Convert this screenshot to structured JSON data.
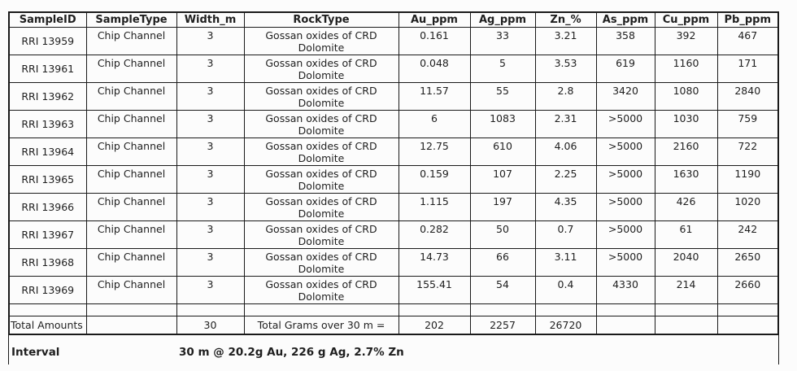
{
  "colors": {
    "background": "#fcfcfc",
    "border": "#1a1a1a",
    "text": "#1f1f1f"
  },
  "table": {
    "columns": [
      {
        "key": "sample_id",
        "label": "SampleID"
      },
      {
        "key": "sample_type",
        "label": "SampleType"
      },
      {
        "key": "width_m",
        "label": "Width_m"
      },
      {
        "key": "rock_type",
        "label": "RockType"
      },
      {
        "key": "au_ppm",
        "label": "Au_ppm"
      },
      {
        "key": "ag_ppm",
        "label": "Ag_ppm"
      },
      {
        "key": "zn_pct",
        "label": "Zn_%"
      },
      {
        "key": "as_ppm",
        "label": "As_ppm"
      },
      {
        "key": "cu_ppm",
        "label": "Cu_ppm"
      },
      {
        "key": "pb_ppm",
        "label": "Pb_ppm"
      }
    ],
    "rows": [
      {
        "sample_id": "RRI 13959",
        "sample_type": "Chip Channel",
        "width_m": "3",
        "rock_type": "Gossan oxides of CRD Dolomite",
        "au_ppm": "0.161",
        "ag_ppm": "33",
        "zn_pct": "3.21",
        "as_ppm": "358",
        "cu_ppm": "392",
        "pb_ppm": "467"
      },
      {
        "sample_id": "RRI 13961",
        "sample_type": "Chip Channel",
        "width_m": "3",
        "rock_type": "Gossan oxides of CRD Dolomite",
        "au_ppm": "0.048",
        "ag_ppm": "5",
        "zn_pct": "3.53",
        "as_ppm": "619",
        "cu_ppm": "1160",
        "pb_ppm": "171"
      },
      {
        "sample_id": "RRI 13962",
        "sample_type": "Chip Channel",
        "width_m": "3",
        "rock_type": "Gossan oxides of CRD Dolomite",
        "au_ppm": "11.57",
        "ag_ppm": "55",
        "zn_pct": "2.8",
        "as_ppm": "3420",
        "cu_ppm": "1080",
        "pb_ppm": "2840"
      },
      {
        "sample_id": "RRI 13963",
        "sample_type": "Chip Channel",
        "width_m": "3",
        "rock_type": "Gossan oxides of CRD Dolomite",
        "au_ppm": "6",
        "ag_ppm": "1083",
        "zn_pct": "2.31",
        "as_ppm": ">5000",
        "cu_ppm": "1030",
        "pb_ppm": "759"
      },
      {
        "sample_id": "RRI 13964",
        "sample_type": "Chip Channel",
        "width_m": "3",
        "rock_type": "Gossan oxides of CRD Dolomite",
        "au_ppm": "12.75",
        "ag_ppm": "610",
        "zn_pct": "4.06",
        "as_ppm": ">5000",
        "cu_ppm": "2160",
        "pb_ppm": "722"
      },
      {
        "sample_id": "RRI 13965",
        "sample_type": "Chip Channel",
        "width_m": "3",
        "rock_type": "Gossan oxides of CRD Dolomite",
        "au_ppm": "0.159",
        "ag_ppm": "107",
        "zn_pct": "2.25",
        "as_ppm": ">5000",
        "cu_ppm": "1630",
        "pb_ppm": "1190"
      },
      {
        "sample_id": "RRI 13966",
        "sample_type": "Chip Channel",
        "width_m": "3",
        "rock_type": "Gossan oxides of CRD Dolomite",
        "au_ppm": "1.115",
        "ag_ppm": "197",
        "zn_pct": "4.35",
        "as_ppm": ">5000",
        "cu_ppm": "426",
        "pb_ppm": "1020"
      },
      {
        "sample_id": "RRI 13967",
        "sample_type": "Chip Channel",
        "width_m": "3",
        "rock_type": "Gossan oxides of CRD Dolomite",
        "au_ppm": "0.282",
        "ag_ppm": "50",
        "zn_pct": "0.7",
        "as_ppm": ">5000",
        "cu_ppm": "61",
        "pb_ppm": "242"
      },
      {
        "sample_id": "RRI 13968",
        "sample_type": "Chip Channel",
        "width_m": "3",
        "rock_type": "Gossan oxides of CRD Dolomite",
        "au_ppm": "14.73",
        "ag_ppm": "66",
        "zn_pct": "3.11",
        "as_ppm": ">5000",
        "cu_ppm": "2040",
        "pb_ppm": "2650"
      },
      {
        "sample_id": "RRI 13969",
        "sample_type": "Chip Channel",
        "width_m": "3",
        "rock_type": "Gossan oxides of CRD Dolomite",
        "au_ppm": "155.41",
        "ag_ppm": "54",
        "zn_pct": "0.4",
        "as_ppm": "4330",
        "cu_ppm": "214",
        "pb_ppm": "2660"
      }
    ],
    "total_row": {
      "sample_id": "Total Amounts",
      "sample_type": "",
      "width_m": "30",
      "rock_type": "Total Grams over 30 m =",
      "au_ppm": "202",
      "ag_ppm": "2257",
      "zn_pct": "26720",
      "as_ppm": "",
      "cu_ppm": "",
      "pb_ppm": ""
    }
  },
  "footer": {
    "interval_label": "Interval",
    "interval_value": "30 m @ 20.2g Au, 226 g Ag, 2.7% Zn"
  },
  "chart_data": {
    "type": "table",
    "columns": [
      "SampleID",
      "SampleType",
      "Width_m",
      "RockType",
      "Au_ppm",
      "Ag_ppm",
      "Zn_%",
      "As_ppm",
      "Cu_ppm",
      "Pb_ppm"
    ],
    "rows": [
      [
        "RRI 13959",
        "Chip Channel",
        "3",
        "Gossan oxides of CRD Dolomite",
        "0.161",
        "33",
        "3.21",
        "358",
        "392",
        "467"
      ],
      [
        "RRI 13961",
        "Chip Channel",
        "3",
        "Gossan oxides of CRD Dolomite",
        "0.048",
        "5",
        "3.53",
        "619",
        "1160",
        "171"
      ],
      [
        "RRI 13962",
        "Chip Channel",
        "3",
        "Gossan oxides of CRD Dolomite",
        "11.57",
        "55",
        "2.8",
        "3420",
        "1080",
        "2840"
      ],
      [
        "RRI 13963",
        "Chip Channel",
        "3",
        "Gossan oxides of CRD Dolomite",
        "6",
        "1083",
        "2.31",
        ">5000",
        "1030",
        "759"
      ],
      [
        "RRI 13964",
        "Chip Channel",
        "3",
        "Gossan oxides of CRD Dolomite",
        "12.75",
        "610",
        "4.06",
        ">5000",
        "2160",
        "722"
      ],
      [
        "RRI 13965",
        "Chip Channel",
        "3",
        "Gossan oxides of CRD Dolomite",
        "0.159",
        "107",
        "2.25",
        ">5000",
        "1630",
        "1190"
      ],
      [
        "RRI 13966",
        "Chip Channel",
        "3",
        "Gossan oxides of CRD Dolomite",
        "1.115",
        "197",
        "4.35",
        ">5000",
        "426",
        "1020"
      ],
      [
        "RRI 13967",
        "Chip Channel",
        "3",
        "Gossan oxides of CRD Dolomite",
        "0.282",
        "50",
        "0.7",
        ">5000",
        "61",
        "242"
      ],
      [
        "RRI 13968",
        "Chip Channel",
        "3",
        "Gossan oxides of CRD Dolomite",
        "14.73",
        "66",
        "3.11",
        ">5000",
        "2040",
        "2650"
      ],
      [
        "RRI 13969",
        "Chip Channel",
        "3",
        "Gossan oxides of CRD Dolomite",
        "155.41",
        "54",
        "0.4",
        "4330",
        "214",
        "2660"
      ]
    ],
    "totals": {
      "Width_m": "30",
      "label": "Total Grams over 30 m =",
      "Au_ppm": "202",
      "Ag_ppm": "2257",
      "Zn_%": "26720"
    },
    "annotation": "Interval 30 m @ 20.2g Au, 226 g Ag, 2.7% Zn"
  }
}
